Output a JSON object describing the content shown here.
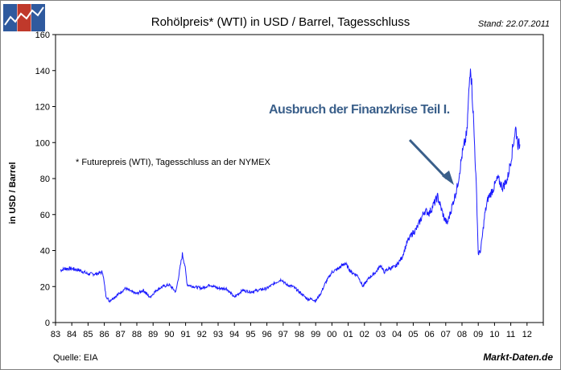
{
  "header": {
    "title": "Rohölpreis* (WTI) in USD / Barrel, Tagesschluss",
    "stand": "Stand: 22.07.2011"
  },
  "footer": {
    "source": "Quelle: EIA",
    "brand": "Markt-Daten.de"
  },
  "colors": {
    "line": "#1a1aff",
    "annotation": "#3a5f8a",
    "logo_blue": "#2f5a9e",
    "logo_red": "#c0392b"
  },
  "chart_data": {
    "type": "line",
    "title": "Rohölpreis* (WTI) in USD / Barrel, Tagesschluss",
    "xlabel": "",
    "ylabel": "in USD / Barrel",
    "ylim": [
      0,
      160
    ],
    "yticks": [
      "0",
      "20",
      "40",
      "60",
      "80",
      "100",
      "120",
      "140",
      "160"
    ],
    "xlim": [
      1983,
      2013
    ],
    "xticks": [
      "83",
      "84",
      "85",
      "86",
      "87",
      "88",
      "89",
      "90",
      "91",
      "92",
      "93",
      "94",
      "95",
      "96",
      "97",
      "98",
      "99",
      "00",
      "01",
      "02",
      "03",
      "04",
      "05",
      "06",
      "07",
      "08",
      "09",
      "10",
      "11",
      "12"
    ],
    "note": "* Futurepreis (WTI), Tagesschluss an der NYMEX",
    "annotation": "Ausbruch der Finanzkrise Teil I.",
    "annotation_target": {
      "x": 2007.6,
      "y": 77
    },
    "series": [
      {
        "name": "WTI",
        "x": [
          1983.3,
          1983.6,
          1984.0,
          1984.5,
          1985.0,
          1985.5,
          1985.9,
          1986.1,
          1986.3,
          1986.6,
          1986.9,
          1987.3,
          1987.7,
          1988.0,
          1988.4,
          1988.8,
          1989.2,
          1989.6,
          1990.0,
          1990.4,
          1990.6,
          1990.8,
          1990.95,
          1991.1,
          1991.5,
          1992.0,
          1992.5,
          1993.0,
          1993.5,
          1994.0,
          1994.5,
          1995.0,
          1995.5,
          1996.0,
          1996.5,
          1996.9,
          1997.2,
          1997.6,
          1998.0,
          1998.5,
          1998.8,
          1999.0,
          1999.3,
          1999.6,
          2000.0,
          2000.4,
          2000.8,
          2001.2,
          2001.6,
          2001.9,
          2002.3,
          2002.7,
          2003.0,
          2003.2,
          2003.5,
          2003.9,
          2004.3,
          2004.6,
          2004.9,
          2005.2,
          2005.7,
          2006.0,
          2006.5,
          2006.9,
          2007.1,
          2007.4,
          2007.7,
          2008.0,
          2008.3,
          2008.52,
          2008.7,
          2008.9,
          2009.0,
          2009.15,
          2009.4,
          2009.6,
          2009.9,
          2010.2,
          2010.5,
          2010.8,
          2011.0,
          2011.3,
          2011.45,
          2011.56
        ],
        "values": [
          29,
          30,
          30,
          29,
          27,
          27,
          28,
          15,
          12,
          14,
          16,
          19,
          17,
          16,
          18,
          14,
          18,
          20,
          21,
          17,
          27,
          38,
          32,
          21,
          20,
          19,
          21,
          19,
          19,
          14,
          18,
          17,
          18,
          19,
          22,
          24,
          21,
          20,
          17,
          13,
          13,
          12,
          16,
          22,
          28,
          30,
          33,
          28,
          26,
          20,
          25,
          28,
          32,
          28,
          30,
          31,
          36,
          44,
          49,
          52,
          62,
          61,
          70,
          58,
          55,
          65,
          75,
          93,
          105,
          145,
          115,
          70,
          38,
          40,
          60,
          69,
          74,
          80,
          75,
          80,
          90,
          108,
          99,
          99
        ]
      }
    ]
  }
}
